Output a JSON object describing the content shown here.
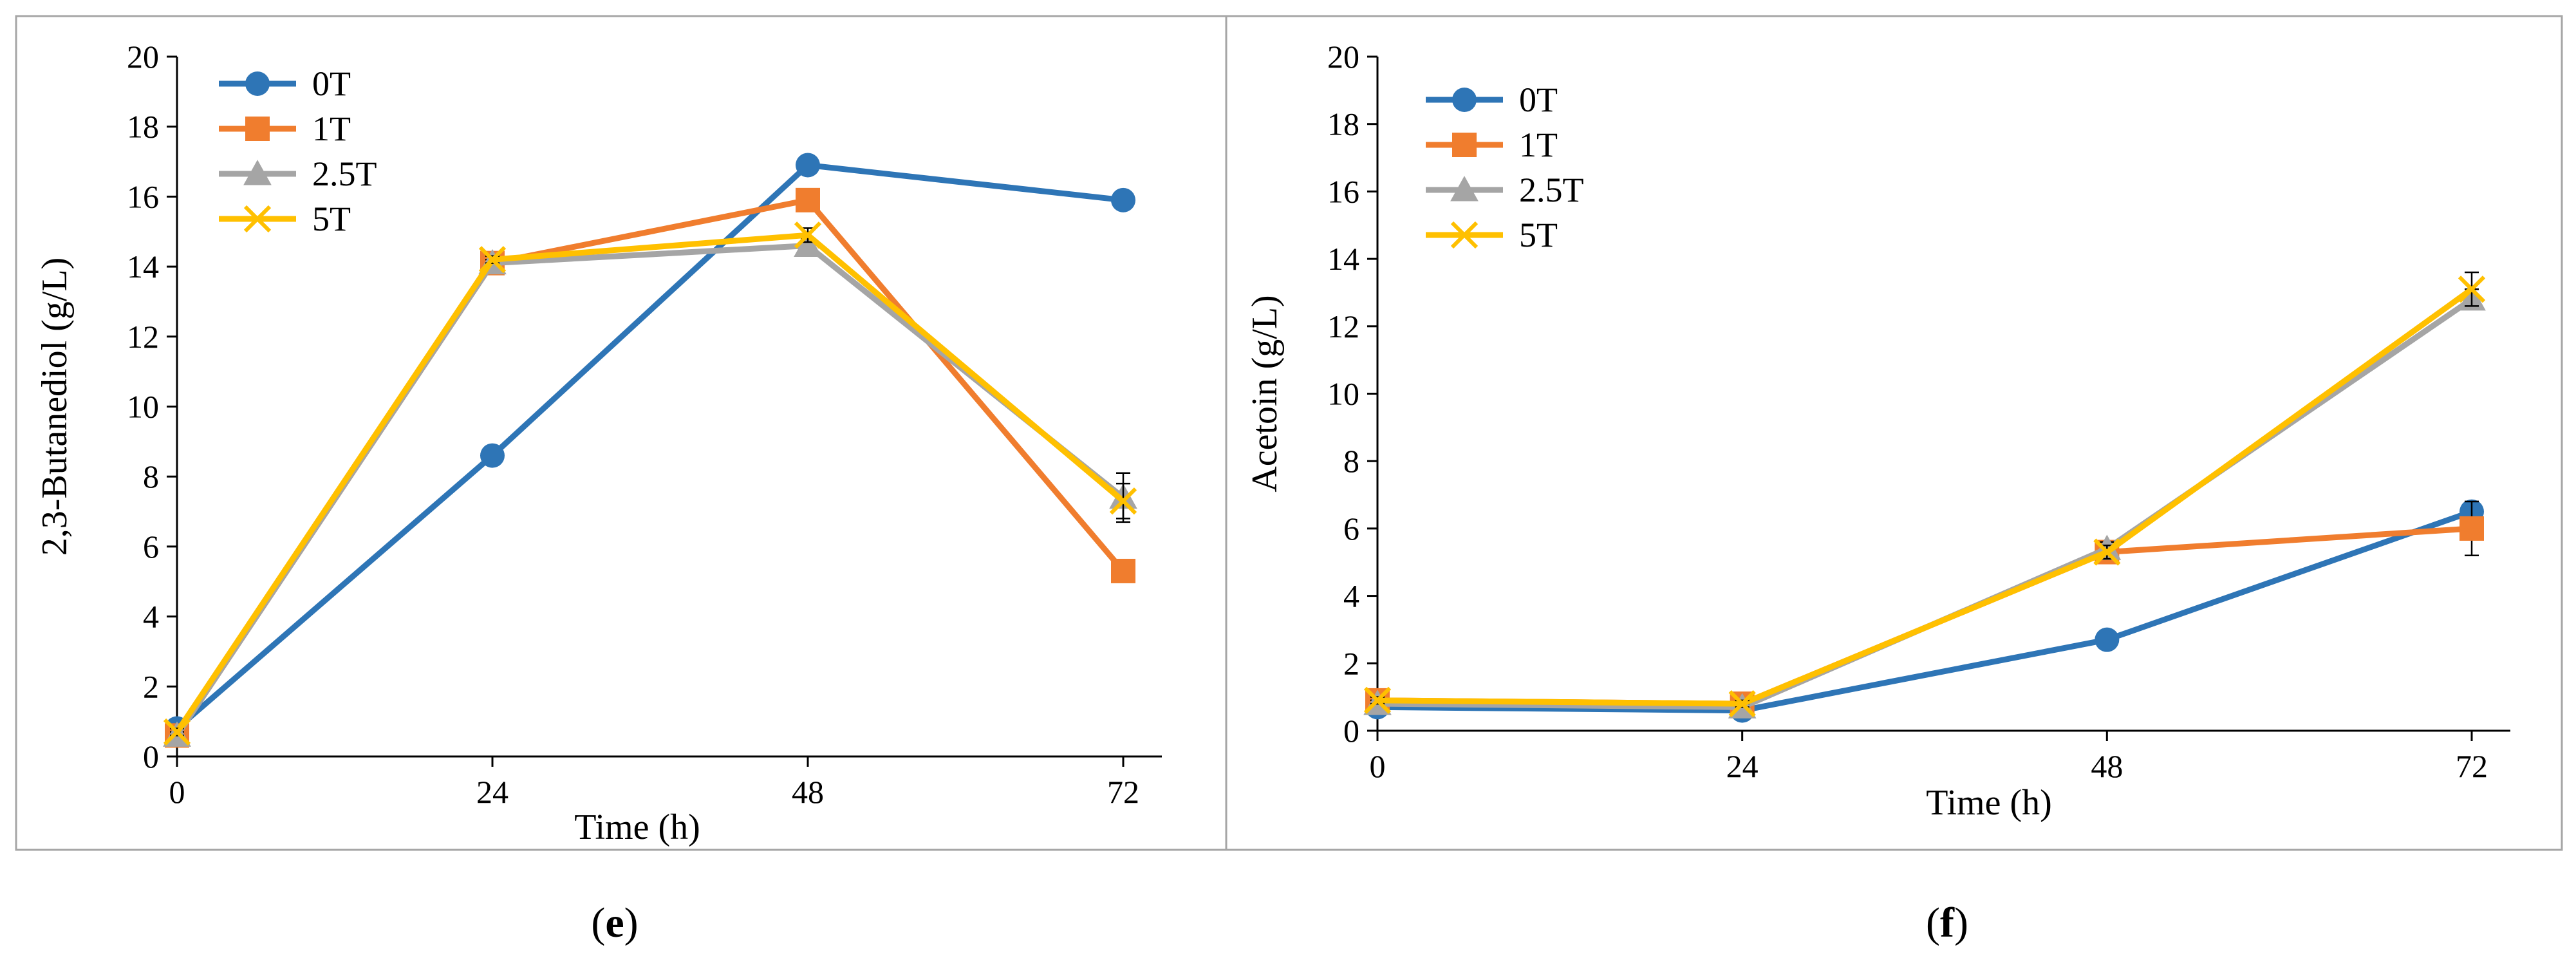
{
  "chart_data": [
    {
      "type": "line",
      "panel_caption": "e",
      "xlabel": "Time (h)",
      "ylabel": "2,3-Butanediol (g/L)",
      "x": [
        0,
        24,
        48,
        72
      ],
      "xticks": [
        "0",
        "24",
        "48",
        "72"
      ],
      "ylim": [
        0,
        20
      ],
      "yticks": [
        "0",
        "2",
        "4",
        "6",
        "8",
        "10",
        "12",
        "14",
        "16",
        "18",
        "20"
      ],
      "legend_position": "top-left",
      "series": [
        {
          "name": "0T",
          "color": "#2E75B6",
          "marker": "circle",
          "values": [
            0.8,
            8.6,
            16.9,
            15.9
          ],
          "errors": [
            0.1,
            0.1,
            0.1,
            0.2
          ]
        },
        {
          "name": "1T",
          "color": "#F07D2E",
          "marker": "square",
          "values": [
            0.6,
            14.1,
            15.9,
            5.3
          ],
          "errors": [
            0.1,
            0.2,
            0.2,
            0.2
          ]
        },
        {
          "name": "2.5T",
          "color": "#A5A5A5",
          "marker": "triangle",
          "values": [
            0.6,
            14.1,
            14.6,
            7.4
          ],
          "errors": [
            0.1,
            0.1,
            0.2,
            0.7
          ]
        },
        {
          "name": "5T",
          "color": "#FFC000",
          "marker": "x",
          "values": [
            0.7,
            14.2,
            14.9,
            7.3
          ],
          "errors": [
            0.1,
            0.1,
            0.2,
            0.5
          ]
        }
      ]
    },
    {
      "type": "line",
      "panel_caption": "f",
      "xlabel": "Time (h)",
      "ylabel": "Acetoin (g/L)",
      "x": [
        0,
        24,
        48,
        72
      ],
      "xticks": [
        "0",
        "24",
        "48",
        "72"
      ],
      "ylim": [
        0,
        20
      ],
      "yticks": [
        "0",
        "2",
        "4",
        "6",
        "8",
        "10",
        "12",
        "14",
        "16",
        "18",
        "20"
      ],
      "legend_position": "top-left",
      "series": [
        {
          "name": "0T",
          "color": "#2E75B6",
          "marker": "circle",
          "values": [
            0.7,
            0.6,
            2.7,
            6.5
          ],
          "errors": [
            0.1,
            0.1,
            0.1,
            0.3
          ]
        },
        {
          "name": "1T",
          "color": "#F07D2E",
          "marker": "square",
          "values": [
            0.9,
            0.8,
            5.3,
            6.0
          ],
          "errors": [
            0.1,
            0.1,
            0.2,
            0.8
          ]
        },
        {
          "name": "2.5T",
          "color": "#A5A5A5",
          "marker": "triangle",
          "values": [
            0.8,
            0.7,
            5.4,
            12.8
          ],
          "errors": [
            0.1,
            0.1,
            0.2,
            0.3
          ]
        },
        {
          "name": "5T",
          "color": "#FFC000",
          "marker": "x",
          "values": [
            0.9,
            0.8,
            5.3,
            13.1
          ],
          "errors": [
            0.1,
            0.1,
            0.2,
            0.5
          ]
        }
      ]
    }
  ]
}
